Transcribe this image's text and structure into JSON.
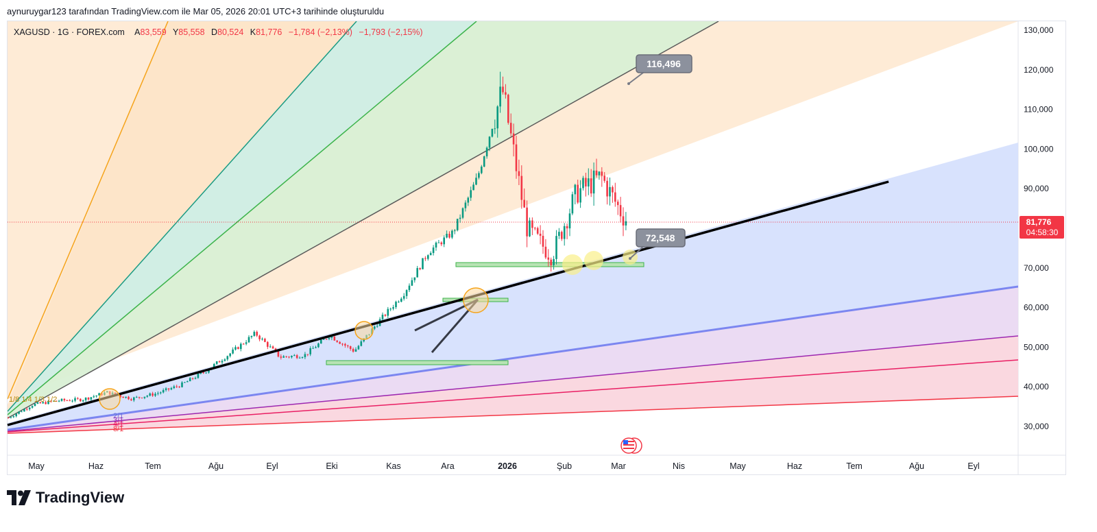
{
  "header": {
    "caption": "aynuruygar123 tarafından TradingView.com ile Mar 05, 2026 20:01 UTC+3 tarihinde oluşturuldu"
  },
  "legend": {
    "symbol": "XAGUSD · 1G · FOREX.com",
    "open_key": "A",
    "open": "83,559",
    "high_key": "Y",
    "high": "85,558",
    "low_key": "D",
    "low": "80,524",
    "close_key": "K",
    "close": "81,776",
    "change": "−1,784 (−2,13%)",
    "change2": "−1,793 (−2,15%)"
  },
  "price_tag": {
    "price": "81,776",
    "countdown": "04:58:30"
  },
  "callouts": {
    "upper": "116,496",
    "lower": "72,548"
  },
  "fan_labels": {
    "upper_left": "1/8 1/4 1/3  1/2",
    "lower_left": [
      "2/1",
      "3/1",
      "4/1",
      "8/1"
    ]
  },
  "brand": {
    "name": "TradingView"
  },
  "colors": {
    "up": "#089981",
    "down": "#f23645",
    "trendline": "#000000",
    "fan_blue": "#7b86f0"
  },
  "chart_data": {
    "type": "candlestick",
    "symbol": "XAGUSD",
    "interval": "1D",
    "ylim": [
      22000,
      134000
    ],
    "y_ticks": [
      "30,000",
      "40,000",
      "50,000",
      "60,000",
      "70,000",
      "80,000",
      "90,000",
      "100,000",
      "110,000",
      "120,000",
      "130,000"
    ],
    "x_ticks": [
      "May",
      "Haz",
      "Tem",
      "Ağu",
      "Eyl",
      "Eki",
      "Kas",
      "Ara",
      "2026",
      "Şub",
      "Mar",
      "Nis",
      "May",
      "Haz",
      "Tem",
      "Ağu",
      "Eyl"
    ],
    "x_ticks_bold": [
      8
    ],
    "last_price": 81.776,
    "price_path": [
      [
        "May",
        32.2
      ],
      [
        "Haz",
        35.5
      ],
      [
        "Haz",
        36.5
      ],
      [
        "Tem",
        36.8
      ],
      [
        "Tem",
        38.6
      ],
      [
        "Ağu",
        37.0
      ],
      [
        "Ağu",
        38.3
      ],
      [
        "Eyl",
        40.5
      ],
      [
        "Eyl",
        44.0
      ],
      [
        "Eki",
        48.5
      ],
      [
        "Eki",
        53.5
      ],
      [
        "Eki",
        47.5
      ],
      [
        "Kas",
        48.0
      ],
      [
        "Kas",
        53.0
      ],
      [
        "Kas",
        49.0
      ],
      [
        "Ara",
        56.5
      ],
      [
        "Ara",
        63.5
      ],
      [
        "Ara",
        74.0
      ],
      [
        "2026",
        79.0
      ],
      [
        "2026",
        93.0
      ],
      [
        "Şub",
        115.0
      ],
      [
        "Şub",
        80.0
      ],
      [
        "Şub",
        73.0
      ],
      [
        "Mar",
        89.0
      ],
      [
        "Mar",
        93.0
      ],
      [
        "Mar",
        81.8
      ]
    ],
    "annotations": {
      "target_high": 116.496,
      "support": 72.548
    }
  }
}
